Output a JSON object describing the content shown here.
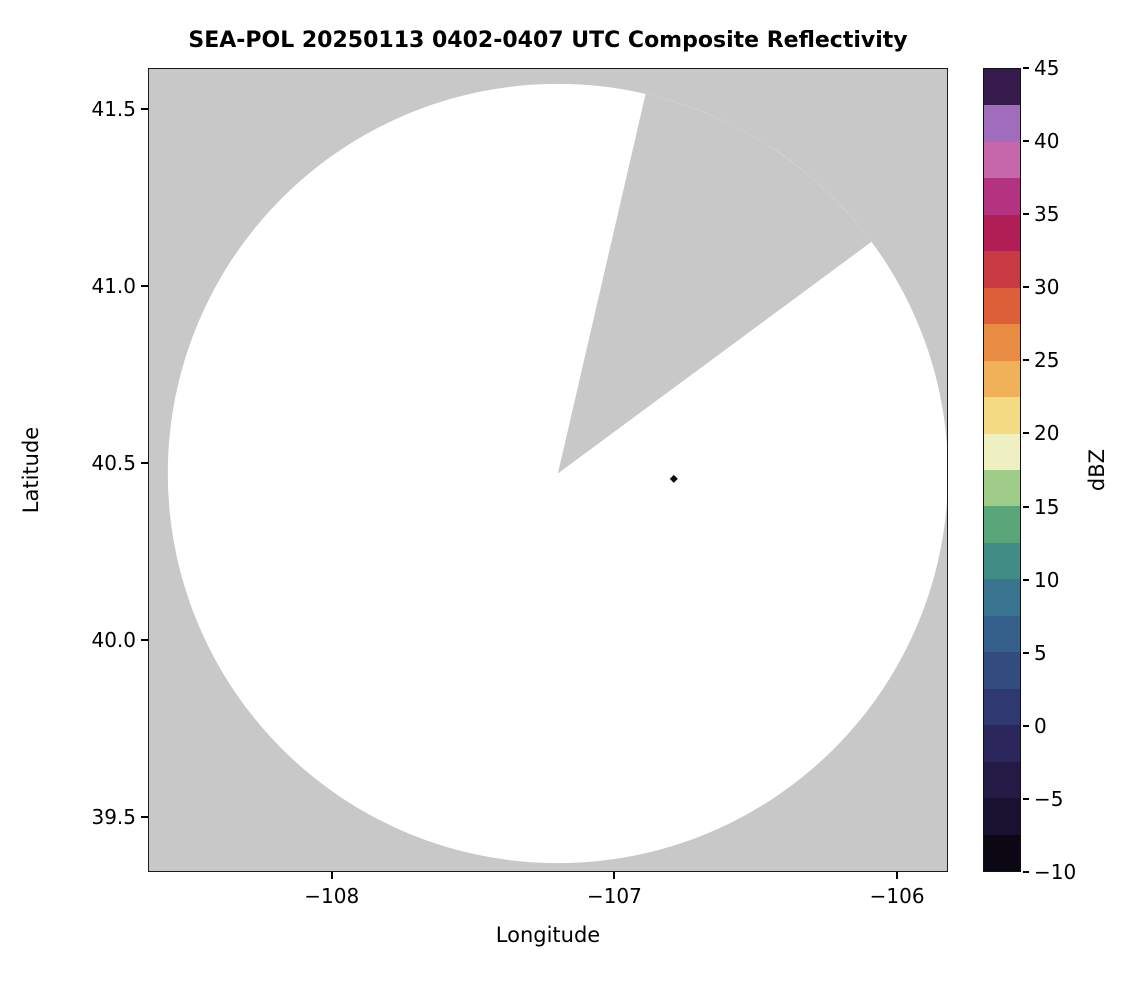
{
  "chart_data": {
    "type": "radar_composite_reflectivity_map",
    "title": "SEA-POL 20250113 0402-0407 UTC Composite Reflectivity",
    "xlabel": "Longitude",
    "ylabel": "Latitude",
    "xlim": [
      -108.65,
      -105.82
    ],
    "ylim": [
      39.345,
      41.615
    ],
    "xticks": [
      {
        "value": -108,
        "label": "−108"
      },
      {
        "value": -107,
        "label": "−107"
      },
      {
        "value": -106,
        "label": "−106"
      }
    ],
    "yticks": [
      {
        "value": 39.5,
        "label": "39.5"
      },
      {
        "value": 40.0,
        "label": "40.0"
      },
      {
        "value": 40.5,
        "label": "40.5"
      },
      {
        "value": 41.0,
        "label": "41.0"
      },
      {
        "value": 41.5,
        "label": "41.5"
      }
    ],
    "no_data_color": "#c8c8c8",
    "coverage": {
      "center": {
        "lon": -107.2,
        "lat": 40.47
      },
      "radius_lon_deg": 1.38,
      "radius_lat_deg": 1.1,
      "fill": "#ffffff",
      "blocked_sector": {
        "azimuth_start_deg": 13,
        "azimuth_end_deg": 53.5
      }
    },
    "echoes": [
      {
        "lon": -106.79,
        "lat": 40.455,
        "color": "#0d0a14"
      }
    ],
    "colorbar": {
      "label": "dBZ",
      "min": -10,
      "max": 45,
      "segment_size_dbz": 2.5,
      "ticks": [
        {
          "value": -10,
          "label": "−10"
        },
        {
          "value": -5,
          "label": "−5"
        },
        {
          "value": 0,
          "label": "0"
        },
        {
          "value": 5,
          "label": "5"
        },
        {
          "value": 10,
          "label": "10"
        },
        {
          "value": 15,
          "label": "15"
        },
        {
          "value": 20,
          "label": "20"
        },
        {
          "value": 25,
          "label": "25"
        },
        {
          "value": 30,
          "label": "30"
        },
        {
          "value": 35,
          "label": "35"
        },
        {
          "value": 40,
          "label": "40"
        },
        {
          "value": 45,
          "label": "45"
        }
      ],
      "colors_bottom_to_top": [
        "#0b0713",
        "#191130",
        "#231a46",
        "#2b265c",
        "#2f3870",
        "#324c80",
        "#35608b",
        "#397590",
        "#3f8d85",
        "#5aa67b",
        "#9fcc89",
        "#eef0c2",
        "#f4da83",
        "#f0b158",
        "#e98c43",
        "#dd5f37",
        "#c93a42",
        "#b01e55",
        "#b43381",
        "#c667ab",
        "#a06cbc",
        "#371a4e"
      ]
    }
  }
}
